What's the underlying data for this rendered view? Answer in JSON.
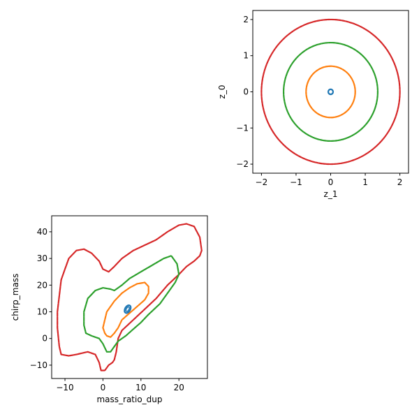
{
  "chart_data": [
    {
      "id": "top-right",
      "type": "scatter",
      "xlabel": "z_1",
      "ylabel": "z_0",
      "xlim": [
        -2.25,
        2.25
      ],
      "ylim": [
        -2.25,
        2.25
      ],
      "xticks": [
        -2,
        -1,
        0,
        1,
        2
      ],
      "yticks": [
        -2,
        -1,
        0,
        1,
        2
      ],
      "series": [
        {
          "color": "#1f77b4",
          "shape": "circle",
          "cx": 0,
          "cy": 0,
          "r": 0.07
        },
        {
          "color": "#ff7f0e",
          "shape": "circle",
          "cx": 0,
          "cy": 0,
          "r": 0.71
        },
        {
          "color": "#2ca02c",
          "shape": "circle",
          "cx": 0,
          "cy": 0,
          "r": 1.36
        },
        {
          "color": "#d62728",
          "shape": "circle",
          "cx": 0,
          "cy": 0,
          "r": 2.0
        }
      ]
    },
    {
      "id": "bottom-left",
      "type": "scatter",
      "xlabel": "mass_ratio_dup",
      "ylabel": "chirp_mass",
      "xlim": [
        -13.5,
        27.5
      ],
      "ylim": [
        -15,
        46
      ],
      "xticks": [
        -10,
        0,
        10,
        20
      ],
      "yticks": [
        -10,
        0,
        10,
        20,
        30,
        40
      ],
      "series": [
        {
          "color": "#d62728",
          "shape": "contour",
          "points": [
            [
              -11,
              -6
            ],
            [
              -9,
              -6.5
            ],
            [
              -7,
              -6
            ],
            [
              -4,
              -5
            ],
            [
              -2,
              -6
            ],
            [
              -1,
              -9
            ],
            [
              -0.5,
              -12
            ],
            [
              0.5,
              -12
            ],
            [
              1.5,
              -10
            ],
            [
              2.5,
              -9
            ],
            [
              3,
              -8
            ],
            [
              3.5,
              -5
            ],
            [
              4,
              0
            ],
            [
              5,
              3
            ],
            [
              8,
              7
            ],
            [
              11,
              11
            ],
            [
              14,
              15
            ],
            [
              17,
              20
            ],
            [
              20,
              24
            ],
            [
              22,
              27
            ],
            [
              24,
              29
            ],
            [
              25.5,
              31
            ],
            [
              26,
              33
            ],
            [
              25.5,
              38
            ],
            [
              24,
              42
            ],
            [
              22,
              43
            ],
            [
              20,
              42.5
            ],
            [
              17,
              40
            ],
            [
              14,
              37
            ],
            [
              11,
              35
            ],
            [
              8,
              33
            ],
            [
              5,
              30
            ],
            [
              3,
              27
            ],
            [
              1.5,
              25
            ],
            [
              0,
              26
            ],
            [
              -1,
              29
            ],
            [
              -3,
              32
            ],
            [
              -5,
              33.5
            ],
            [
              -7,
              33
            ],
            [
              -9,
              30
            ],
            [
              -10,
              26
            ],
            [
              -11,
              22
            ],
            [
              -12,
              10
            ],
            [
              -12,
              4
            ],
            [
              -11.5,
              -3
            ],
            [
              -11,
              -6
            ]
          ]
        },
        {
          "color": "#2ca02c",
          "shape": "contour",
          "points": [
            [
              -5,
              5
            ],
            [
              -5,
              10
            ],
            [
              -4,
              15
            ],
            [
              -2,
              18
            ],
            [
              0,
              19
            ],
            [
              2,
              18.5
            ],
            [
              3,
              18
            ],
            [
              5,
              20
            ],
            [
              7,
              22.5
            ],
            [
              10,
              25
            ],
            [
              13,
              27.5
            ],
            [
              16,
              30
            ],
            [
              18,
              31
            ],
            [
              19.5,
              28
            ],
            [
              20,
              24
            ],
            [
              19,
              21
            ],
            [
              17,
              17
            ],
            [
              15,
              13
            ],
            [
              12,
              9
            ],
            [
              10,
              6
            ],
            [
              8,
              3.5
            ],
            [
              6,
              1
            ],
            [
              4,
              -1
            ],
            [
              3,
              -3
            ],
            [
              2,
              -5
            ],
            [
              1,
              -5
            ],
            [
              0,
              -2
            ],
            [
              -1,
              0
            ],
            [
              -3,
              1
            ],
            [
              -4.5,
              2
            ],
            [
              -5,
              5
            ]
          ]
        },
        {
          "color": "#ff7f0e",
          "shape": "contour",
          "points": [
            [
              0,
              4
            ],
            [
              0.5,
              7
            ],
            [
              1,
              10
            ],
            [
              3,
              14
            ],
            [
              5,
              17
            ],
            [
              7,
              19
            ],
            [
              9,
              20.5
            ],
            [
              11,
              21
            ],
            [
              12,
              19.5
            ],
            [
              12,
              17
            ],
            [
              11,
              14.5
            ],
            [
              9,
              12
            ],
            [
              7,
              9.5
            ],
            [
              5,
              7
            ],
            [
              4,
              4
            ],
            [
              3,
              2
            ],
            [
              2,
              0.5
            ],
            [
              1,
              1
            ],
            [
              0.5,
              2
            ],
            [
              0,
              4
            ]
          ]
        },
        {
          "color": "#1f77b4",
          "shape": "ellipse",
          "cx": 6.5,
          "cy": 11,
          "rx": 0.7,
          "ry": 1.6,
          "angle": 30
        }
      ]
    }
  ]
}
